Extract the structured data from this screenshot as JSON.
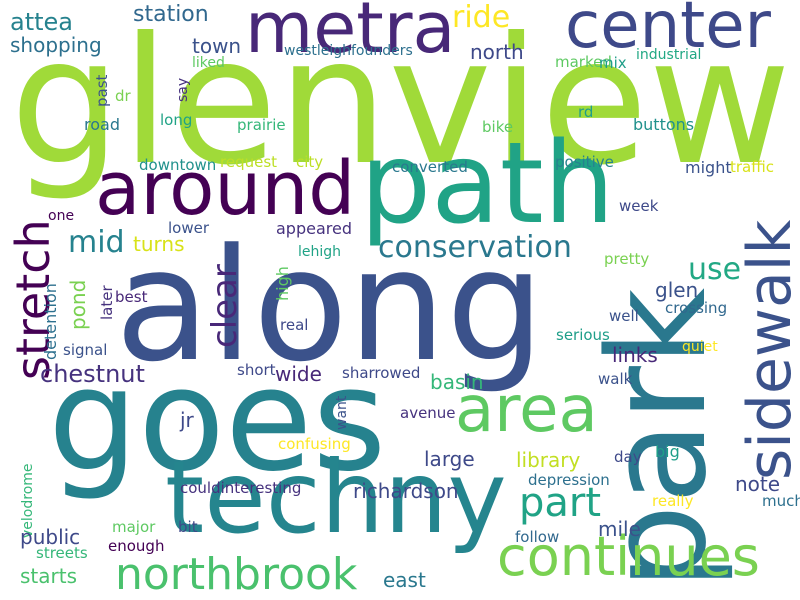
{
  "words": [
    {
      "text": "glenview",
      "color": "#a0da39"
    },
    {
      "text": "along",
      "color": "#3b528b"
    },
    {
      "text": "park",
      "color": "#2a788e"
    },
    {
      "text": "goes",
      "color": "#26828e"
    },
    {
      "text": "techny",
      "color": "#25858e"
    },
    {
      "text": "path",
      "color": "#20a386"
    },
    {
      "text": "around",
      "color": "#440154"
    },
    {
      "text": "metra",
      "color": "#482878"
    },
    {
      "text": "center",
      "color": "#3e4989"
    },
    {
      "text": "area",
      "color": "#5ec962"
    },
    {
      "text": "continues",
      "color": "#7ad151"
    },
    {
      "text": "northbrook",
      "color": "#4ac16d"
    },
    {
      "text": "sidewalk",
      "color": "#3b528b"
    },
    {
      "text": "stretch",
      "color": "#440154"
    },
    {
      "text": "conservation",
      "color": "#2a788e"
    },
    {
      "text": "part",
      "color": "#20a386"
    },
    {
      "text": "clear",
      "color": "#482878"
    },
    {
      "text": "mid",
      "color": "#26828e"
    },
    {
      "text": "use",
      "color": "#22a884"
    },
    {
      "text": "ride",
      "color": "#fde725"
    },
    {
      "text": "station",
      "color": "#31688e"
    },
    {
      "text": "shopping",
      "color": "#2d708e"
    },
    {
      "text": "attea",
      "color": "#26828e"
    },
    {
      "text": "town",
      "color": "#3b528b"
    },
    {
      "text": "north",
      "color": "#3e4989"
    },
    {
      "text": "westleighfounders",
      "color": "#2d708e"
    },
    {
      "text": "marked",
      "color": "#5ec962"
    },
    {
      "text": "mix",
      "color": "#1f9e89"
    },
    {
      "text": "industrial",
      "color": "#22a884"
    },
    {
      "text": "liked",
      "color": "#5ec962"
    },
    {
      "text": "say",
      "color": "#46327e"
    },
    {
      "text": "past",
      "color": "#3b528b"
    },
    {
      "text": "dr",
      "color": "#7ad151"
    },
    {
      "text": "road",
      "color": "#2a788e"
    },
    {
      "text": "long",
      "color": "#20a386"
    },
    {
      "text": "prairie",
      "color": "#35b779"
    },
    {
      "text": "rd",
      "color": "#1f9e89"
    },
    {
      "text": "bike",
      "color": "#5ec962"
    },
    {
      "text": "buttons",
      "color": "#21918c"
    },
    {
      "text": "downtown",
      "color": "#21918c"
    },
    {
      "text": "request",
      "color": "#bddf26"
    },
    {
      "text": "city",
      "color": "#bddf26"
    },
    {
      "text": "converted",
      "color": "#2a788e"
    },
    {
      "text": "positive",
      "color": "#26828e"
    },
    {
      "text": "might",
      "color": "#3b528b"
    },
    {
      "text": "traffic",
      "color": "#d8e219"
    },
    {
      "text": "one",
      "color": "#440154"
    },
    {
      "text": "lower",
      "color": "#3b528b"
    },
    {
      "text": "appeared",
      "color": "#46327e"
    },
    {
      "text": "week",
      "color": "#3e4989"
    },
    {
      "text": "turns",
      "color": "#d8e219"
    },
    {
      "text": "lehigh",
      "color": "#20a386"
    },
    {
      "text": "high",
      "color": "#5ec962"
    },
    {
      "text": "pretty",
      "color": "#7ad151"
    },
    {
      "text": "glen",
      "color": "#3b528b"
    },
    {
      "text": "detention",
      "color": "#2d708e"
    },
    {
      "text": "pond",
      "color": "#7ad151"
    },
    {
      "text": "later",
      "color": "#46327e"
    },
    {
      "text": "best",
      "color": "#482878"
    },
    {
      "text": "crossing",
      "color": "#31688e"
    },
    {
      "text": "well",
      "color": "#3b528b"
    },
    {
      "text": "real",
      "color": "#3e4989"
    },
    {
      "text": "serious",
      "color": "#1f9e89"
    },
    {
      "text": "signal",
      "color": "#3b528b"
    },
    {
      "text": "links",
      "color": "#482878"
    },
    {
      "text": "quiet",
      "color": "#fde725"
    },
    {
      "text": "chestnut",
      "color": "#46327e"
    },
    {
      "text": "short",
      "color": "#3e4989"
    },
    {
      "text": "wide",
      "color": "#482878"
    },
    {
      "text": "sharrowed",
      "color": "#3e4989"
    },
    {
      "text": "basin",
      "color": "#35b779"
    },
    {
      "text": "walk",
      "color": "#3b528b"
    },
    {
      "text": "avenue",
      "color": "#46327e"
    },
    {
      "text": "want",
      "color": "#3b528b"
    },
    {
      "text": "jr",
      "color": "#3e4989"
    },
    {
      "text": "velodrome",
      "color": "#35b779"
    },
    {
      "text": "confusing",
      "color": "#fde725"
    },
    {
      "text": "large",
      "color": "#3e4989"
    },
    {
      "text": "library",
      "color": "#c2df23"
    },
    {
      "text": "day",
      "color": "#3e4989"
    },
    {
      "text": "big",
      "color": "#1f9e89"
    },
    {
      "text": "depression",
      "color": "#2d708e"
    },
    {
      "text": "couldinteresting",
      "color": "#46327e"
    },
    {
      "text": "richardson",
      "color": "#3e4989"
    },
    {
      "text": "note",
      "color": "#3e4989"
    },
    {
      "text": "really",
      "color": "#fde725"
    },
    {
      "text": "much",
      "color": "#2d708e"
    },
    {
      "text": "public",
      "color": "#3e4989"
    },
    {
      "text": "major",
      "color": "#5ec962"
    },
    {
      "text": "bit",
      "color": "#3e4989"
    },
    {
      "text": "mile",
      "color": "#3b528b"
    },
    {
      "text": "follow",
      "color": "#31688e"
    },
    {
      "text": "streets",
      "color": "#35b779"
    },
    {
      "text": "enough",
      "color": "#440154"
    },
    {
      "text": "starts",
      "color": "#4ac16d"
    },
    {
      "text": "east",
      "color": "#2a788e"
    }
  ]
}
